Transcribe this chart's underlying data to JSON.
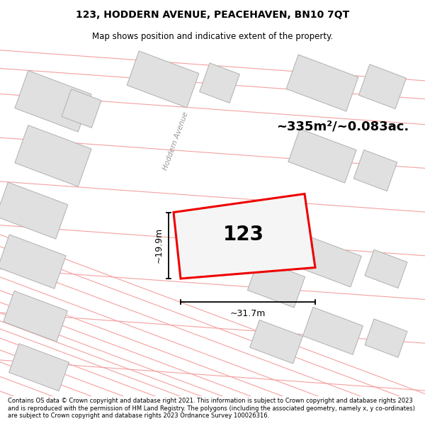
{
  "title_line1": "123, HODDERN AVENUE, PEACEHAVEN, BN10 7QT",
  "title_line2": "Map shows position and indicative extent of the property.",
  "footer_text": "Contains OS data © Crown copyright and database right 2021. This information is subject to Crown copyright and database rights 2023 and is reproduced with the permission of HM Land Registry. The polygons (including the associated geometry, namely x, y co-ordinates) are subject to Crown copyright and database rights 2023 Ordnance Survey 100026316.",
  "area_label": "~335m²/~0.083ac.",
  "width_label": "~31.7m",
  "height_label": "~19.9m",
  "number_label": "123",
  "street_label": "Hoddern Avenue",
  "bg_color": "#ffffff",
  "map_bg": "#f0f0f0",
  "building_fill": "#e0e0e0",
  "building_edge": "#b0b0b0",
  "road_color": "#f5a0a0",
  "highlight_color": "#ee0000",
  "highlight_fill": "#f5f5f5",
  "title_fontsize": 10,
  "subtitle_fontsize": 8.5,
  "footer_fontsize": 6.0
}
